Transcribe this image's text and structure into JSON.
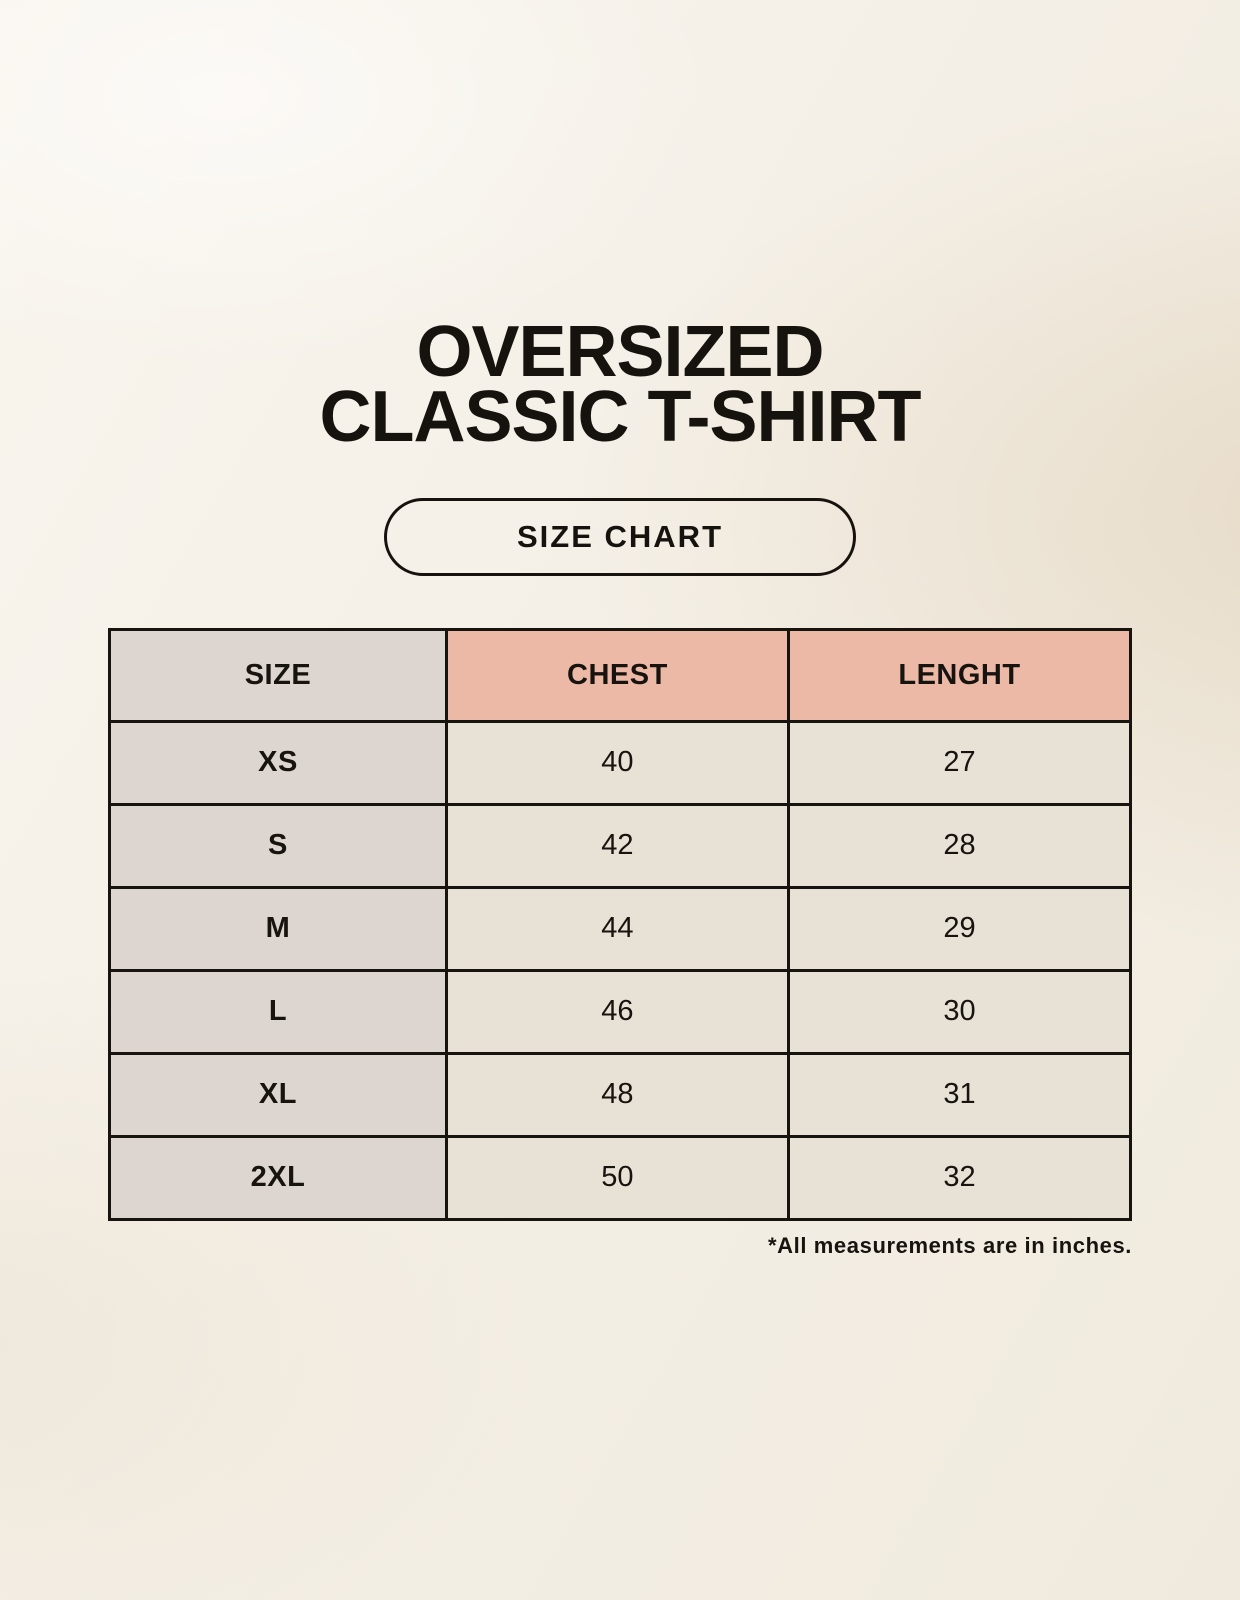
{
  "page": {
    "background_color": "#f4efe6",
    "text_color": "#16120e"
  },
  "header": {
    "title_line1": "OVERSIZED",
    "title_line2": "CLASSIC T-SHIRT",
    "badge_label": "SIZE CHART"
  },
  "colors": {
    "table_border": "#17130f",
    "size_column_bg": "#ddd5d0",
    "header_measure_bg": "#edb9a7",
    "data_cell_bg": "#e8e1d5"
  },
  "chart_data": {
    "type": "table",
    "title": "OVERSIZED CLASSIC T-SHIRT",
    "subtitle": "SIZE CHART",
    "columns": [
      "SIZE",
      "CHEST",
      "LENGHT"
    ],
    "rows": [
      {
        "size": "XS",
        "chest": "40",
        "lenght": "27"
      },
      {
        "size": "S",
        "chest": "42",
        "lenght": "28"
      },
      {
        "size": "M",
        "chest": "44",
        "lenght": "29"
      },
      {
        "size": "L",
        "chest": "46",
        "lenght": "30"
      },
      {
        "size": "XL",
        "chest": "48",
        "lenght": "31"
      },
      {
        "size": "2XL",
        "chest": "50",
        "lenght": "32"
      }
    ],
    "note": "*All measurements are in inches."
  }
}
